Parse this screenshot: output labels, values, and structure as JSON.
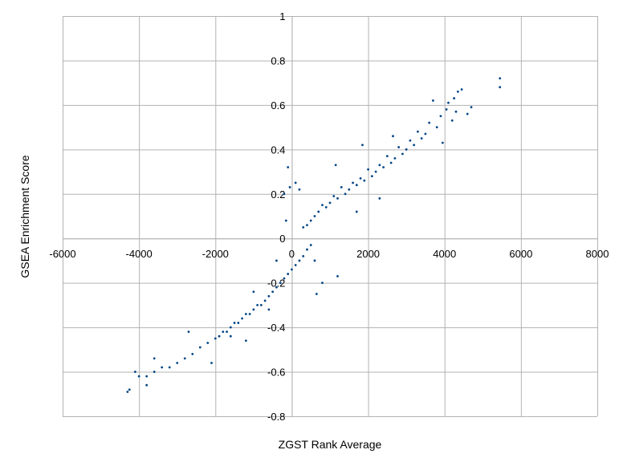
{
  "chart_data": {
    "type": "scatter",
    "title": "",
    "xlabel": "ZGST Rank Average",
    "ylabel": "GSEA Enrichment Score",
    "xlim": [
      -6000,
      8000
    ],
    "ylim": [
      -0.8,
      1
    ],
    "x_ticks": [
      "-6000",
      "-4000",
      "-2000",
      "0",
      "2000",
      "4000",
      "6000",
      "8000"
    ],
    "y_ticks": [
      "-0.8",
      "-0.6",
      "-0.4",
      "-0.2",
      "0",
      "0.2",
      "0.4",
      "0.6",
      "0.8",
      "1"
    ],
    "grid": true,
    "legend": "none",
    "marker_color": "#004586",
    "gridline_color": "#b3b3b3",
    "series": [
      {
        "points": [
          [
            5450,
            0.72
          ],
          [
            5450,
            0.68
          ],
          [
            4700,
            0.59
          ],
          [
            4450,
            0.67
          ],
          [
            4350,
            0.66
          ],
          [
            4250,
            0.63
          ],
          [
            4100,
            0.61
          ],
          [
            4600,
            0.56
          ],
          [
            4300,
            0.57
          ],
          [
            4050,
            0.58
          ],
          [
            3900,
            0.55
          ],
          [
            4200,
            0.53
          ],
          [
            3700,
            0.62
          ],
          [
            3800,
            0.5
          ],
          [
            3600,
            0.52
          ],
          [
            3500,
            0.47
          ],
          [
            3400,
            0.45
          ],
          [
            3300,
            0.48
          ],
          [
            3200,
            0.42
          ],
          [
            3100,
            0.44
          ],
          [
            3000,
            0.4
          ],
          [
            2900,
            0.38
          ],
          [
            2800,
            0.41
          ],
          [
            2700,
            0.36
          ],
          [
            2600,
            0.34
          ],
          [
            2500,
            0.37
          ],
          [
            2400,
            0.32
          ],
          [
            2300,
            0.33
          ],
          [
            2200,
            0.3
          ],
          [
            2100,
            0.28
          ],
          [
            2000,
            0.31
          ],
          [
            1900,
            0.26
          ],
          [
            1800,
            0.27
          ],
          [
            1700,
            0.24
          ],
          [
            1600,
            0.25
          ],
          [
            1500,
            0.22
          ],
          [
            1400,
            0.2
          ],
          [
            1300,
            0.23
          ],
          [
            1200,
            0.18
          ],
          [
            1100,
            0.19
          ],
          [
            1000,
            0.16
          ],
          [
            900,
            0.14
          ],
          [
            800,
            0.15
          ],
          [
            700,
            0.12
          ],
          [
            600,
            0.1
          ],
          [
            500,
            0.08
          ],
          [
            400,
            0.06
          ],
          [
            300,
            0.05
          ],
          [
            200,
            0.22
          ],
          [
            100,
            0.25
          ],
          [
            -100,
            0.32
          ],
          [
            -50,
            0.23
          ],
          [
            -200,
            0.2
          ],
          [
            -150,
            0.08
          ],
          [
            1850,
            0.42
          ],
          [
            2650,
            0.46
          ],
          [
            3950,
            0.43
          ],
          [
            1150,
            0.33
          ],
          [
            2300,
            0.18
          ],
          [
            1700,
            0.12
          ],
          [
            500,
            -0.03
          ],
          [
            400,
            -0.05
          ],
          [
            300,
            -0.08
          ],
          [
            200,
            -0.1
          ],
          [
            100,
            -0.12
          ],
          [
            0,
            -0.14
          ],
          [
            -100,
            -0.16
          ],
          [
            -200,
            -0.18
          ],
          [
            -300,
            -0.2
          ],
          [
            -400,
            -0.22
          ],
          [
            -500,
            -0.24
          ],
          [
            -600,
            -0.26
          ],
          [
            -700,
            -0.28
          ],
          [
            -800,
            -0.3
          ],
          [
            -900,
            -0.3
          ],
          [
            -1000,
            -0.32
          ],
          [
            -1100,
            -0.34
          ],
          [
            -1200,
            -0.34
          ],
          [
            -1300,
            -0.36
          ],
          [
            -1400,
            -0.38
          ],
          [
            -1500,
            -0.38
          ],
          [
            -1600,
            -0.4
          ],
          [
            -1700,
            -0.42
          ],
          [
            -1800,
            -0.42
          ],
          [
            -1900,
            -0.44
          ],
          [
            -2000,
            -0.45
          ],
          [
            -2200,
            -0.47
          ],
          [
            -2400,
            -0.49
          ],
          [
            -2600,
            -0.52
          ],
          [
            -2800,
            -0.54
          ],
          [
            -3000,
            -0.56
          ],
          [
            -3200,
            -0.58
          ],
          [
            -3400,
            -0.58
          ],
          [
            -3600,
            -0.6
          ],
          [
            -3800,
            -0.62
          ],
          [
            -4000,
            -0.62
          ],
          [
            -4100,
            -0.6
          ],
          [
            -4300,
            -0.69
          ],
          [
            -4250,
            -0.68
          ],
          [
            -3800,
            -0.66
          ],
          [
            -2100,
            -0.56
          ],
          [
            -1600,
            -0.44
          ],
          [
            600,
            -0.1
          ],
          [
            800,
            -0.2
          ],
          [
            1200,
            -0.17
          ],
          [
            650,
            -0.25
          ],
          [
            -600,
            -0.32
          ],
          [
            -1200,
            -0.46
          ],
          [
            -2700,
            -0.42
          ],
          [
            -3600,
            -0.54
          ],
          [
            -1000,
            -0.24
          ],
          [
            -400,
            -0.1
          ]
        ]
      }
    ]
  }
}
